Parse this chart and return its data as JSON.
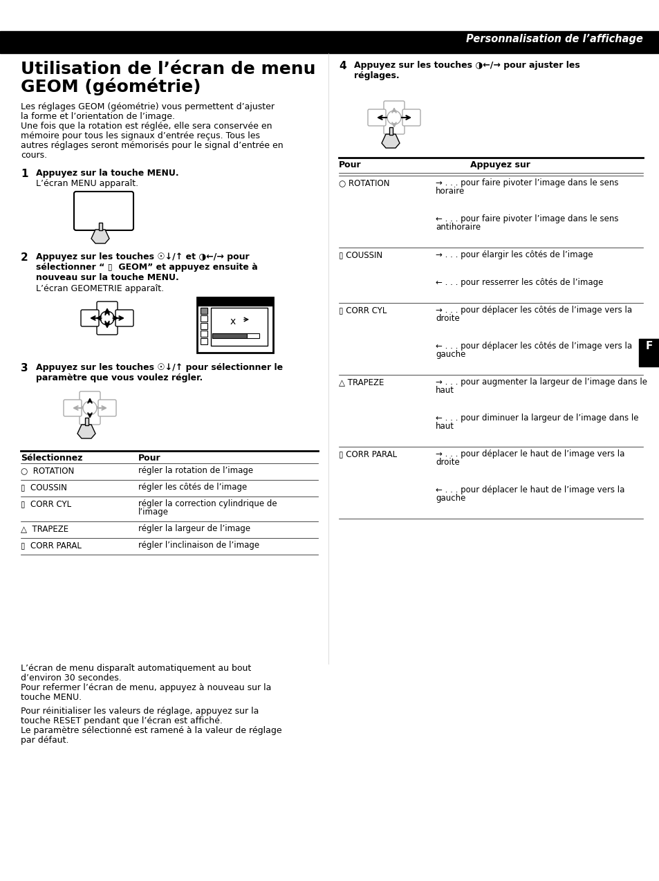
{
  "bg_color": "#ffffff",
  "header_bg": "#000000",
  "header_text": "Personnalisation de l’affichage",
  "header_text_color": "#ffffff",
  "title_line1": "Utilisation de l’écran de menu",
  "title_line2": "GEOM (géométrie)",
  "sidebar_letter": "F",
  "sidebar_bg": "#000000",
  "sidebar_text_color": "#ffffff"
}
